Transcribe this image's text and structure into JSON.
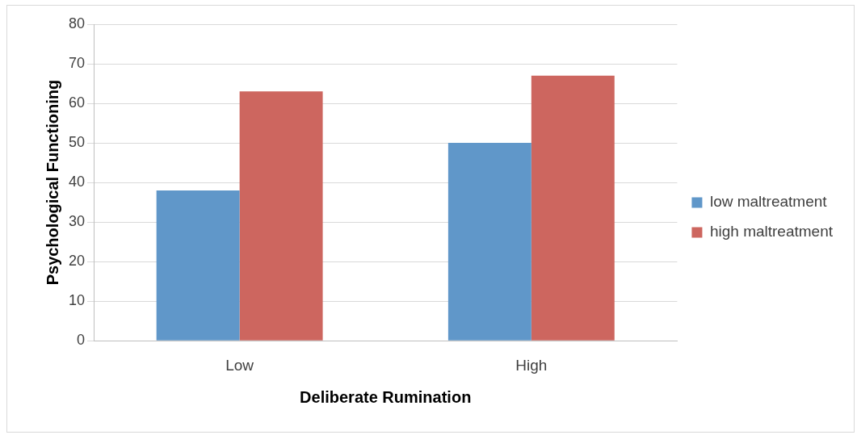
{
  "chart_data": {
    "type": "bar",
    "xlabel": "Deliberate Rumination",
    "ylabel": "Psychological Functioning",
    "categories": [
      "Low",
      "High"
    ],
    "series": [
      {
        "name": "low maltreatment",
        "color": "#6097c9",
        "values": [
          38,
          50
        ]
      },
      {
        "name": "high maltreatment",
        "color": "#cd665f",
        "values": [
          63,
          67
        ]
      }
    ],
    "ylim": [
      0,
      80
    ],
    "yticks": [
      0,
      10,
      20,
      30,
      40,
      50,
      60,
      70,
      80
    ],
    "grid": "y",
    "legend": "right"
  }
}
